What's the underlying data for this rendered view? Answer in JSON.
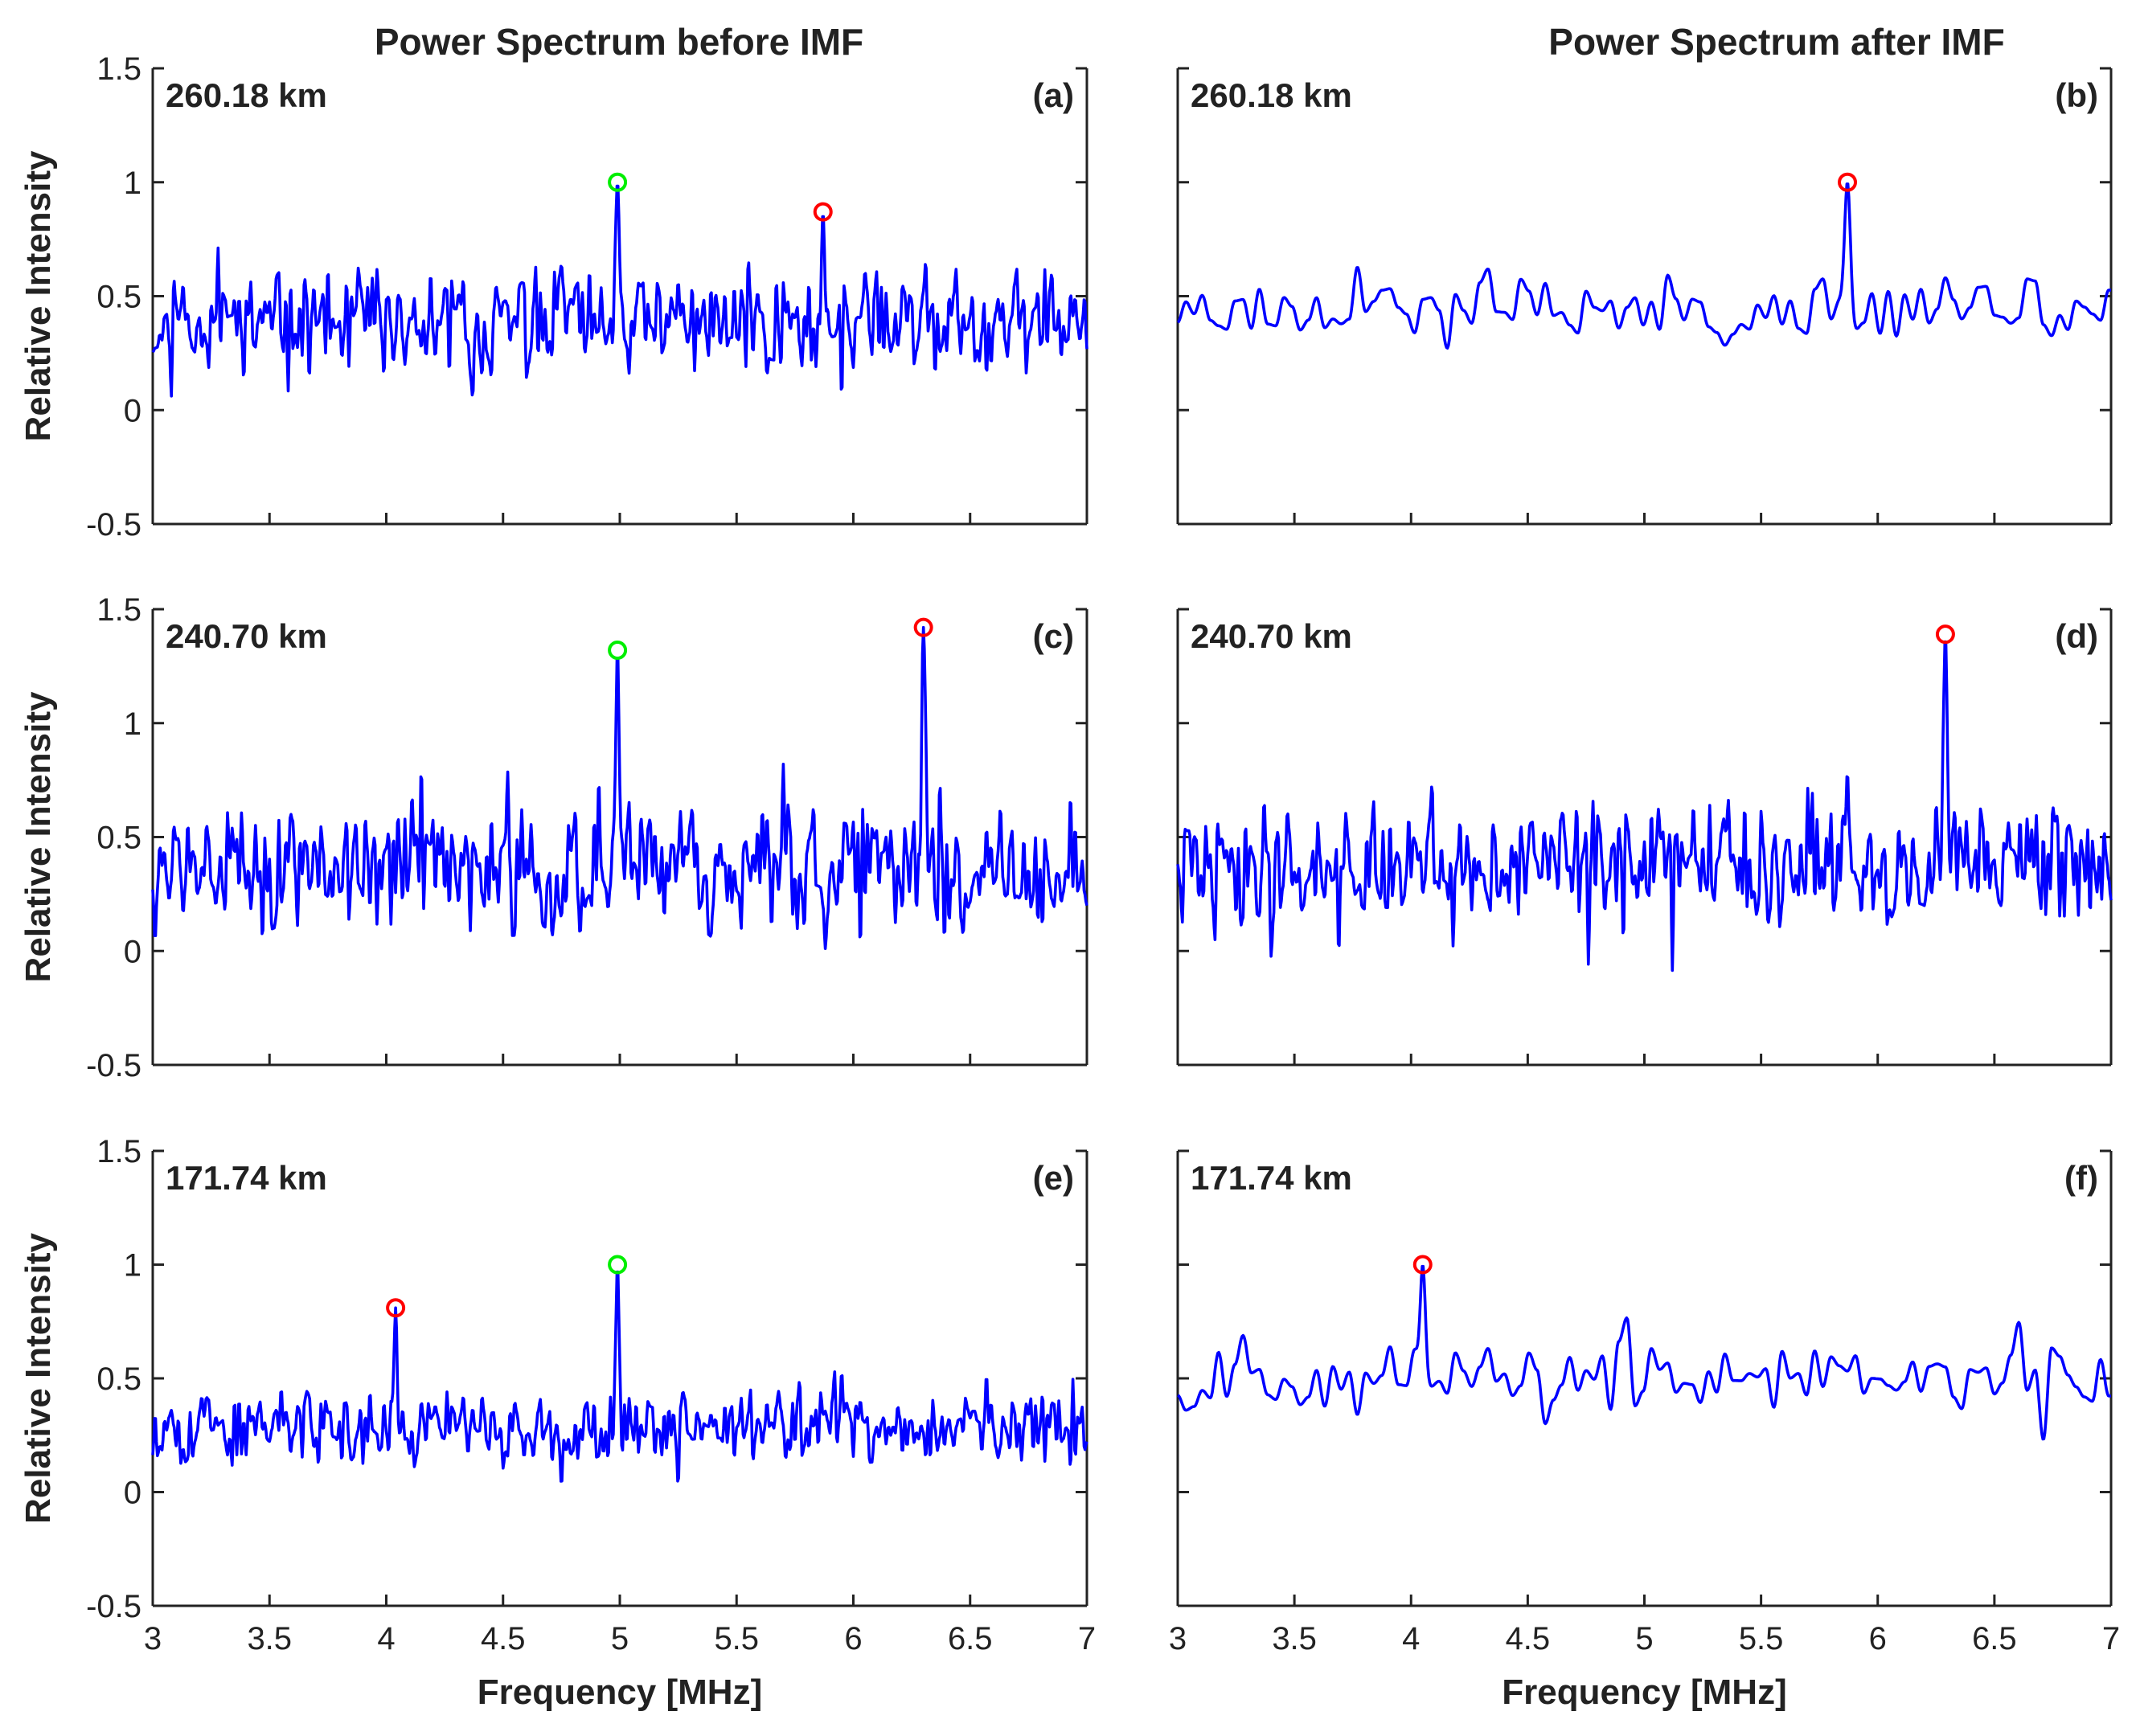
{
  "column_titles": [
    "Power Spectrum before IMF",
    "Power Spectrum after IMF"
  ],
  "colors": {
    "line": "#0000ff",
    "green_marker": "#00ee00",
    "red_marker": "#ff0000",
    "axis": "#222222"
  },
  "chart_data": [
    {
      "id": "a",
      "type": "line",
      "panel_label": "(a)",
      "altitude": "260.18 km",
      "column": 0,
      "row": 0,
      "xlim": [
        3,
        7
      ],
      "ylim": [
        -0.5,
        1.5
      ],
      "ylabel": "Relative Intensity",
      "xlabel": "",
      "yticks": [
        "1.5",
        "1",
        "0.5",
        "0",
        "-0.5"
      ],
      "xticks": [],
      "noise": {
        "seed": 11,
        "step": 0.01,
        "base": 0.38,
        "amp": 0.17,
        "lo": 0.02,
        "hi": 0.75
      },
      "peaks": [
        {
          "x": 4.99,
          "y": 1.0,
          "w": 0.012,
          "marker": "green"
        },
        {
          "x": 5.87,
          "y": 0.87,
          "w": 0.01,
          "marker": "red"
        }
      ]
    },
    {
      "id": "b",
      "type": "line",
      "panel_label": "(b)",
      "altitude": "260.18 km",
      "column": 1,
      "row": 0,
      "xlim": [
        3,
        7
      ],
      "ylim": [
        -0.5,
        1.5
      ],
      "ylabel": "",
      "xlabel": "",
      "yticks": [],
      "xticks": [],
      "noise": {
        "seed": 23,
        "step": 0.035,
        "base": 0.45,
        "amp": 0.1,
        "lo": 0.24,
        "hi": 0.78
      },
      "peaks": [
        {
          "x": 5.87,
          "y": 1.0,
          "w": 0.018,
          "marker": "red"
        }
      ]
    },
    {
      "id": "c",
      "type": "line",
      "panel_label": "(c)",
      "altitude": "240.70 km",
      "column": 0,
      "row": 1,
      "xlim": [
        3,
        7
      ],
      "ylim": [
        -0.5,
        1.5
      ],
      "ylabel": "Relative Intensity",
      "xlabel": "",
      "yticks": [
        "1.5",
        "1",
        "0.5",
        "0",
        "-0.5"
      ],
      "xticks": [],
      "noise": {
        "seed": 37,
        "step": 0.01,
        "base": 0.35,
        "amp": 0.22,
        "lo": -0.13,
        "hi": 0.82
      },
      "peaks": [
        {
          "x": 4.99,
          "y": 1.32,
          "w": 0.01,
          "marker": "green"
        },
        {
          "x": 6.3,
          "y": 1.42,
          "w": 0.012,
          "marker": "red"
        }
      ]
    },
    {
      "id": "d",
      "type": "line",
      "panel_label": "(d)",
      "altitude": "240.70 km",
      "column": 1,
      "row": 1,
      "xlim": [
        3,
        7
      ],
      "ylim": [
        -0.5,
        1.5
      ],
      "ylabel": "",
      "xlabel": "",
      "yticks": [],
      "xticks": [],
      "noise": {
        "seed": 41,
        "step": 0.01,
        "base": 0.38,
        "amp": 0.2,
        "lo": -0.18,
        "hi": 0.8
      },
      "peaks": [
        {
          "x": 6.29,
          "y": 1.39,
          "w": 0.012,
          "marker": "red"
        }
      ]
    },
    {
      "id": "e",
      "type": "line",
      "panel_label": "(e)",
      "altitude": "171.74 km",
      "column": 0,
      "row": 2,
      "xlim": [
        3,
        7
      ],
      "ylim": [
        -0.5,
        1.5
      ],
      "ylabel": "Relative Intensity",
      "xlabel": "Frequency [MHz]",
      "yticks": [
        "1.5",
        "1",
        "0.5",
        "0",
        "-0.5"
      ],
      "xticks": [
        "3",
        "3.5",
        "4",
        "4.5",
        "5",
        "5.5",
        "6",
        "6.5",
        "7"
      ],
      "noise": {
        "seed": 53,
        "step": 0.01,
        "base": 0.28,
        "amp": 0.13,
        "lo": 0.03,
        "hi": 0.62
      },
      "peaks": [
        {
          "x": 4.04,
          "y": 0.81,
          "w": 0.01,
          "marker": "red"
        },
        {
          "x": 4.99,
          "y": 1.0,
          "w": 0.01,
          "marker": "green"
        }
      ]
    },
    {
      "id": "f",
      "type": "line",
      "panel_label": "(f)",
      "altitude": "171.74 km",
      "column": 1,
      "row": 2,
      "xlim": [
        3,
        7
      ],
      "ylim": [
        -0.5,
        1.5
      ],
      "ylabel": "",
      "xlabel": "Frequency [MHz]",
      "yticks": [],
      "xticks": [
        "3",
        "3.5",
        "4",
        "4.5",
        "5",
        "5.5",
        "6",
        "6.5",
        "7"
      ],
      "noise": {
        "seed": 67,
        "step": 0.035,
        "base": 0.5,
        "amp": 0.12,
        "lo": 0.17,
        "hi": 0.8
      },
      "peaks": [
        {
          "x": 4.05,
          "y": 1.0,
          "w": 0.016,
          "marker": "red"
        }
      ]
    }
  ]
}
